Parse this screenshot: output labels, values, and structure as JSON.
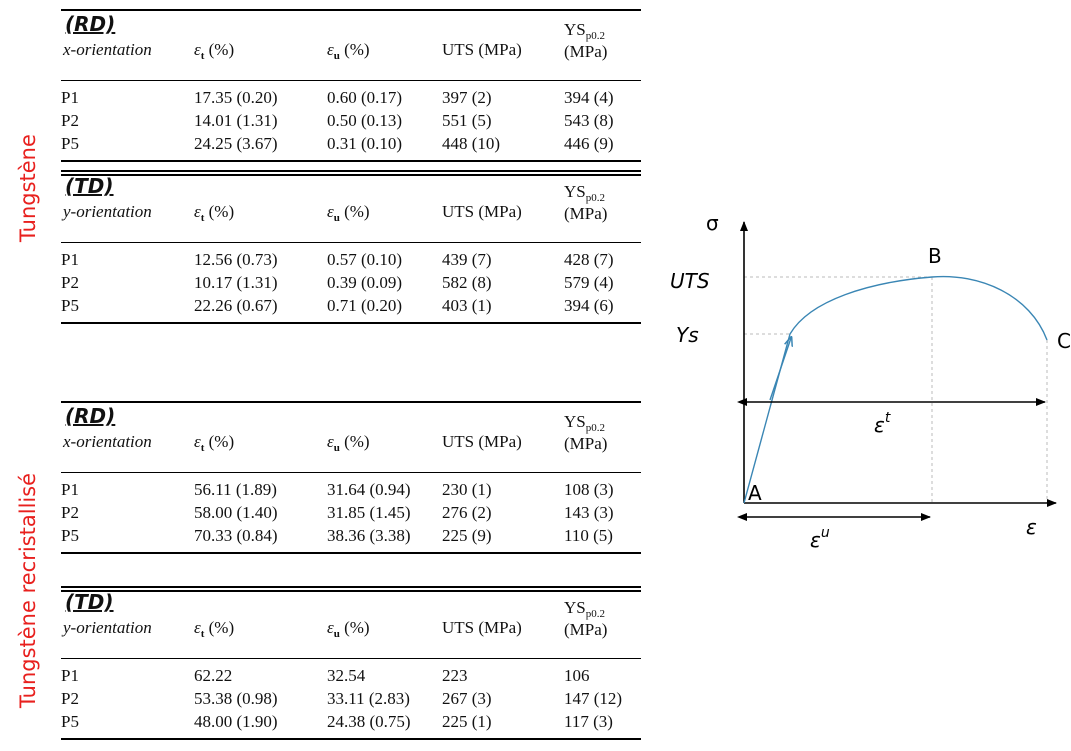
{
  "side_labels": {
    "tungstene": "Tungstène",
    "tungstene_recristallise": "Tungstène recristallisé"
  },
  "tables": [
    {
      "title": "(RD)",
      "orientation_label": "x-orientation",
      "columns": [
        "εt (%)",
        "εu (%)",
        "UTS (MPa)",
        "YSp0.2 (MPa)"
      ],
      "rows": [
        {
          "id": "P1",
          "et": "17.35 (0.20)",
          "eu": "0.60 (0.17)",
          "uts": "397 (2)",
          "ys": "394 (4)"
        },
        {
          "id": "P2",
          "et": "14.01 (1.31)",
          "eu": "0.50 (0.13)",
          "uts": "551 (5)",
          "ys": "543 (8)"
        },
        {
          "id": "P5",
          "et": "24.25 (3.67)",
          "eu": "0.31 (0.10)",
          "uts": "448 (10)",
          "ys": "446 (9)"
        }
      ]
    },
    {
      "title": "(TD)",
      "orientation_label": "y-orientation",
      "columns": [
        "εt (%)",
        "εu (%)",
        "UTS (MPa)",
        "YSp0.2 (MPa)"
      ],
      "rows": [
        {
          "id": "P1",
          "et": "12.56 (0.73)",
          "eu": "0.57 (0.10)",
          "uts": "439 (7)",
          "ys": "428 (7)"
        },
        {
          "id": "P2",
          "et": "10.17 (1.31)",
          "eu": "0.39 (0.09)",
          "uts": "582 (8)",
          "ys": "579 (4)"
        },
        {
          "id": "P5",
          "et": "22.26 (0.67)",
          "eu": "0.71 (0.20)",
          "uts": "403 (1)",
          "ys": "394 (6)"
        }
      ]
    },
    {
      "title": "(RD)",
      "orientation_label": "x-orientation",
      "columns": [
        "εt (%)",
        "εu (%)",
        "UTS (MPa)",
        "YSp0.2 (MPa)"
      ],
      "rows": [
        {
          "id": "P1",
          "et": "56.11 (1.89)",
          "eu": "31.64 (0.94)",
          "uts": "230 (1)",
          "ys": "108 (3)"
        },
        {
          "id": "P2",
          "et": "58.00 (1.40)",
          "eu": "31.85 (1.45)",
          "uts": "276 (2)",
          "ys": "143 (3)"
        },
        {
          "id": "P5",
          "et": "70.33 (0.84)",
          "eu": "38.36 (3.38)",
          "uts": "225 (9)",
          "ys": "110 (5)"
        }
      ]
    },
    {
      "title": "(TD)",
      "orientation_label": "y-orientation",
      "columns": [
        "εt (%)",
        "εu (%)",
        "UTS (MPa)",
        "YSp0.2 (MPa)"
      ],
      "rows": [
        {
          "id": "P1",
          "et": "62.22",
          "eu": "32.54",
          "uts": "223",
          "ys": "106"
        },
        {
          "id": "P2",
          "et": "53.38 (0.98)",
          "eu": "33.11 (2.83)",
          "uts": "267 (3)",
          "ys": "147 (12)"
        },
        {
          "id": "P5",
          "et": "48.00 (1.90)",
          "eu": "24.38 (0.75)",
          "uts": "225 (1)",
          "ys": "117 (3)"
        }
      ]
    }
  ],
  "diagram": {
    "y_axis": "σ",
    "x_axis": "ε",
    "uts": "UTS",
    "ys": "Ys",
    "points": {
      "a": "A",
      "b": "B",
      "c": "C"
    },
    "eps_t": "εt",
    "eps_u": "εu"
  }
}
